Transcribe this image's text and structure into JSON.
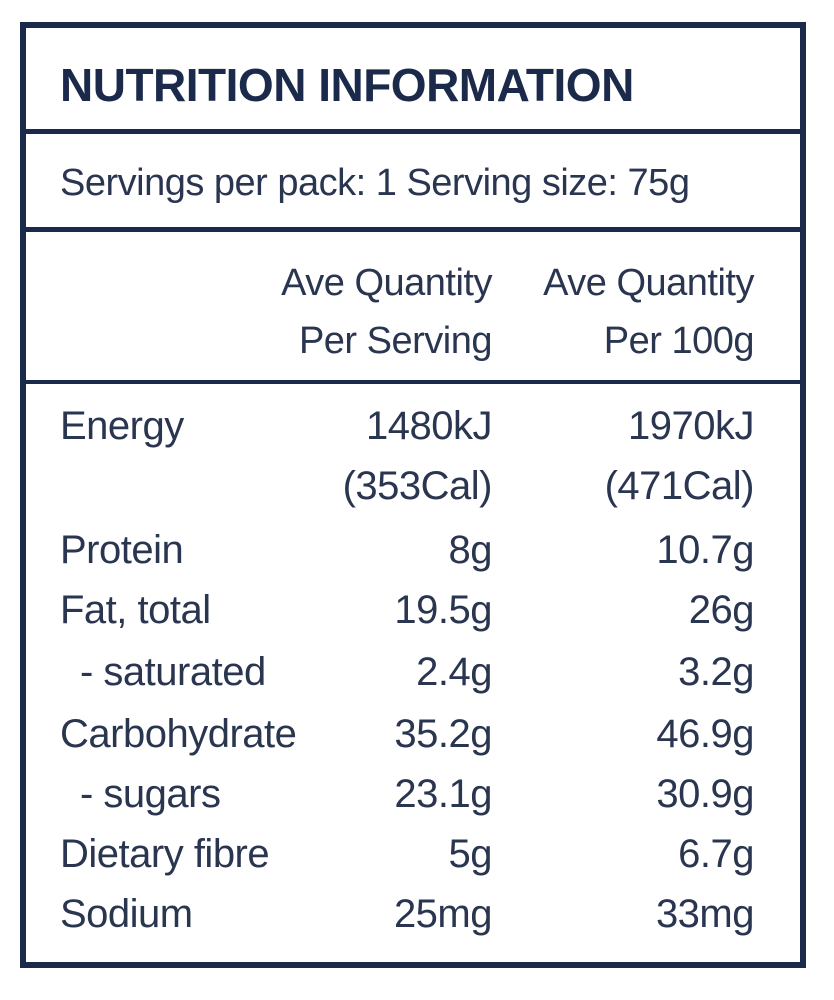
{
  "title": "NUTRITION INFORMATION",
  "servings_line": "Servings per pack: 1  Serving size: 75g",
  "columns": {
    "per_serving_line1": "Ave Quantity",
    "per_serving_line2": "Per Serving",
    "per_100g_line1": "Ave Quantity",
    "per_100g_line2": "Per 100g"
  },
  "rows": [
    {
      "label": "Energy",
      "per_serving": "1480kJ",
      "per_100g": "1970kJ"
    },
    {
      "label": "",
      "per_serving": "(353Cal)",
      "per_100g": "(471Cal)"
    },
    {
      "label": "Protein",
      "per_serving": "8g",
      "per_100g": "10.7g"
    },
    {
      "label": "Fat, total",
      "per_serving": "19.5g",
      "per_100g": "26g"
    },
    {
      "label": "- saturated",
      "per_serving": "2.4g",
      "per_100g": "3.2g"
    },
    {
      "label": "Carbohydrate",
      "per_serving": "35.2g",
      "per_100g": "46.9g"
    },
    {
      "label": "- sugars",
      "per_serving": "23.1g",
      "per_100g": "30.9g"
    },
    {
      "label": "Dietary fibre",
      "per_serving": "5g",
      "per_100g": "6.7g"
    },
    {
      "label": "Sodium",
      "per_serving": "25mg",
      "per_100g": "33mg"
    }
  ],
  "colors": {
    "border": "#1b2a4a",
    "text": "#2a3550",
    "background": "#ffffff"
  }
}
